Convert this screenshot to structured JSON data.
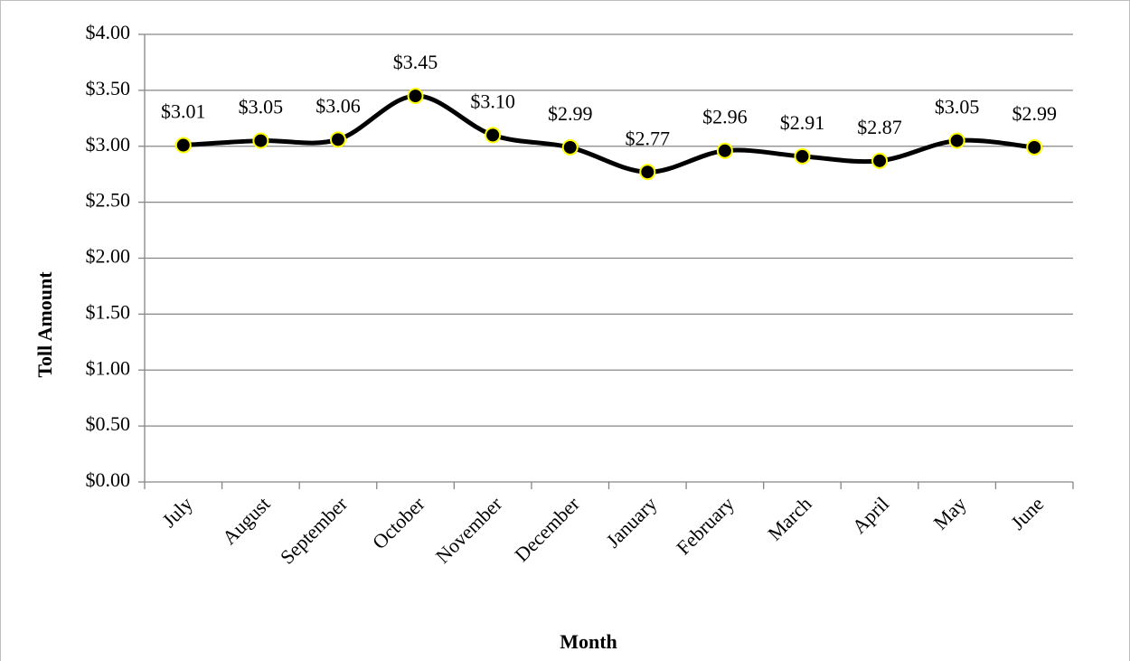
{
  "chart_data": {
    "type": "line",
    "x_label": "Month",
    "y_label": "Toll Amount",
    "categories": [
      "July",
      "August",
      "September",
      "October",
      "November",
      "December",
      "January",
      "February",
      "March",
      "April",
      "May",
      "June"
    ],
    "values": [
      3.01,
      3.05,
      3.06,
      3.45,
      3.1,
      2.99,
      2.77,
      2.96,
      2.91,
      2.87,
      3.05,
      2.99
    ],
    "value_labels": [
      "$3.01",
      "$3.05",
      "$3.06",
      "$3.45",
      "$3.10",
      "$2.99",
      "$2.77",
      "$2.96",
      "$2.91",
      "$2.87",
      "$3.05",
      "$2.99"
    ],
    "color": "#000000",
    "marker_edge_color": "#ffff00",
    "smooth": true,
    "ylim": [
      0,
      4
    ],
    "yticks": [
      {
        "value": 0,
        "label": "$0.00"
      },
      {
        "value": 0.5,
        "label": "$0.50"
      },
      {
        "value": 1,
        "label": "$1.00"
      },
      {
        "value": 1.5,
        "label": "$1.50"
      },
      {
        "value": 2,
        "label": "$2.00"
      },
      {
        "value": 2.5,
        "label": "$2.50"
      },
      {
        "value": 3,
        "label": "$3.00"
      },
      {
        "value": 3.5,
        "label": "$3.50"
      },
      {
        "value": 4,
        "label": "$4.00"
      }
    ],
    "grid": true
  }
}
